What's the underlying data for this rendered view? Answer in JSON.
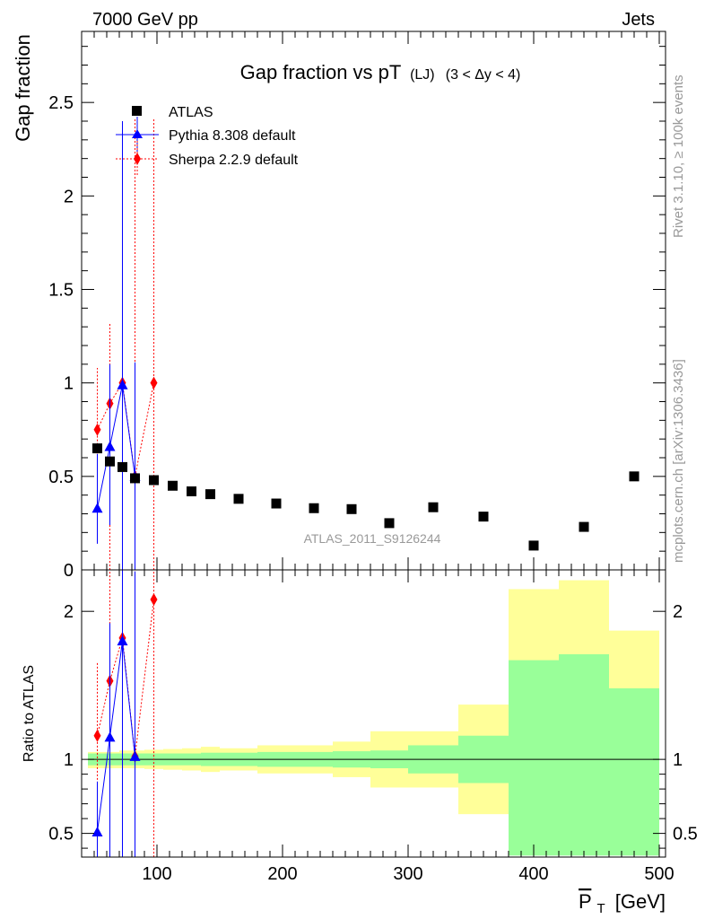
{
  "header": {
    "left": "7000 GeV pp",
    "right": "Jets"
  },
  "side_labels": {
    "rivet": "Rivet 3.1.10, ≥ 100k events",
    "mcplots": "mcplots.cern.ch [arXiv:1306.3436]"
  },
  "colors": {
    "atlas": "#000000",
    "pythia": "#0000ff",
    "sherpa": "#ff0000",
    "band_outer": "#ffff99",
    "band_inner": "#99ff99",
    "watermark": "#999999"
  },
  "chart_data": [
    {
      "id": "main",
      "type": "scatter",
      "title_main": "Gap fraction vs pT",
      "title_sub": "(LJ)",
      "title_range": "(3 < Δy < 4)",
      "ylabel": "Gap fraction",
      "xlim": [
        40,
        505
      ],
      "ylim": [
        0,
        2.88
      ],
      "yticks": [
        0,
        0.5,
        1,
        1.5,
        2,
        2.5
      ],
      "ytick_labels": [
        "0",
        "0.5",
        "1",
        "1.5",
        "2",
        "2.5"
      ],
      "watermark": "ATLAS_2011_S9126244",
      "legend_position": "top-left",
      "series": [
        {
          "name": "ATLAS",
          "marker": "square",
          "x": [
            52.5,
            62.5,
            72.5,
            82.5,
            97.5,
            112.5,
            127.5,
            142.5,
            165,
            195,
            225,
            255,
            285,
            320,
            360,
            400,
            440,
            480
          ],
          "y": [
            0.65,
            0.58,
            0.55,
            0.49,
            0.48,
            0.45,
            0.42,
            0.405,
            0.38,
            0.355,
            0.33,
            0.325,
            0.25,
            0.335,
            0.285,
            0.13,
            0.23,
            0.5
          ]
        },
        {
          "name": "Pythia 8.308 default",
          "marker": "triangle",
          "x": [
            52.5,
            62.5,
            72.5,
            82.5
          ],
          "y": [
            0.33,
            0.66,
            0.99,
            0.5
          ],
          "err_lo": [
            0.19,
            0.42,
            0.99,
            0.5
          ],
          "err_hi": [
            0.29,
            0.44,
            1.41,
            0.61
          ]
        },
        {
          "name": "Sherpa 2.2.9 default",
          "marker": "diamond",
          "x": [
            52.5,
            62.5,
            72.5,
            82.5,
            97.5
          ],
          "y": [
            0.75,
            0.89,
            1.0,
            0.5,
            1.0
          ],
          "err_lo": [
            0.35,
            0.89,
            1.0,
            0.5,
            1.0
          ],
          "err_hi": [
            0.33,
            0.43,
            0.82,
            1.91,
            1.41
          ]
        }
      ]
    },
    {
      "id": "ratio",
      "type": "scatter",
      "ylabel": "Ratio to ATLAS",
      "xlabel_main": "P",
      "xlabel_sub": "T",
      "xlabel_unit": "[GeV]",
      "xlim": [
        40,
        505
      ],
      "ylim": [
        0.34,
        2.28
      ],
      "yticks": [
        0.5,
        1,
        2
      ],
      "ytick_labels": [
        "0.5",
        "1",
        "2"
      ],
      "xticks": [
        100,
        200,
        300,
        400,
        500
      ],
      "xtick_labels": [
        "100",
        "200",
        "300",
        "400",
        "500"
      ],
      "reference_line": 1,
      "bands": {
        "edges": [
          45,
          60,
          70,
          80,
          90,
          105,
          120,
          135,
          150,
          180,
          210,
          240,
          270,
          300,
          340,
          380,
          420,
          460,
          500
        ],
        "inner_lo": [
          0.96,
          0.96,
          0.96,
          0.96,
          0.96,
          0.96,
          0.96,
          0.955,
          0.955,
          0.95,
          0.95,
          0.945,
          0.94,
          0.905,
          0.84,
          0.35,
          0.35,
          0.35
        ],
        "inner_hi": [
          1.04,
          1.04,
          1.04,
          1.04,
          1.04,
          1.04,
          1.04,
          1.045,
          1.045,
          1.05,
          1.05,
          1.055,
          1.06,
          1.095,
          1.16,
          1.67,
          1.71,
          1.48
        ],
        "outer_lo": [
          0.94,
          0.94,
          0.94,
          0.94,
          0.935,
          0.93,
          0.925,
          0.915,
          0.925,
          0.905,
          0.905,
          0.88,
          0.81,
          0.81,
          0.63,
          0.57,
          0.53,
          0.62
        ],
        "outer_hi": [
          1.05,
          1.05,
          1.06,
          1.06,
          1.065,
          1.07,
          1.075,
          1.085,
          1.075,
          1.095,
          1.095,
          1.12,
          1.19,
          1.19,
          1.37,
          2.15,
          2.21,
          1.87
        ]
      },
      "series": [
        {
          "name": "Pythia 8.308 default",
          "marker": "triangle",
          "x": [
            52.5,
            62.5,
            72.5,
            82.5
          ],
          "y": [
            0.51,
            1.15,
            1.8,
            1.02
          ],
          "err_lo": [
            0.51,
            1.15,
            1.8,
            1.02
          ],
          "err_hi": [
            0.34,
            0.77,
            2.5,
            1.25
          ]
        },
        {
          "name": "Sherpa 2.2.9 default",
          "marker": "diamond",
          "x": [
            52.5,
            62.5,
            72.5,
            82.5,
            97.5
          ],
          "y": [
            1.16,
            1.53,
            1.82,
            1.02,
            2.08
          ],
          "err_lo": [
            0.54,
            1.53,
            1.82,
            1.02,
            2.08
          ],
          "err_hi": [
            0.5,
            0.74,
            1.49,
            3.9,
            2.94
          ]
        }
      ]
    }
  ]
}
